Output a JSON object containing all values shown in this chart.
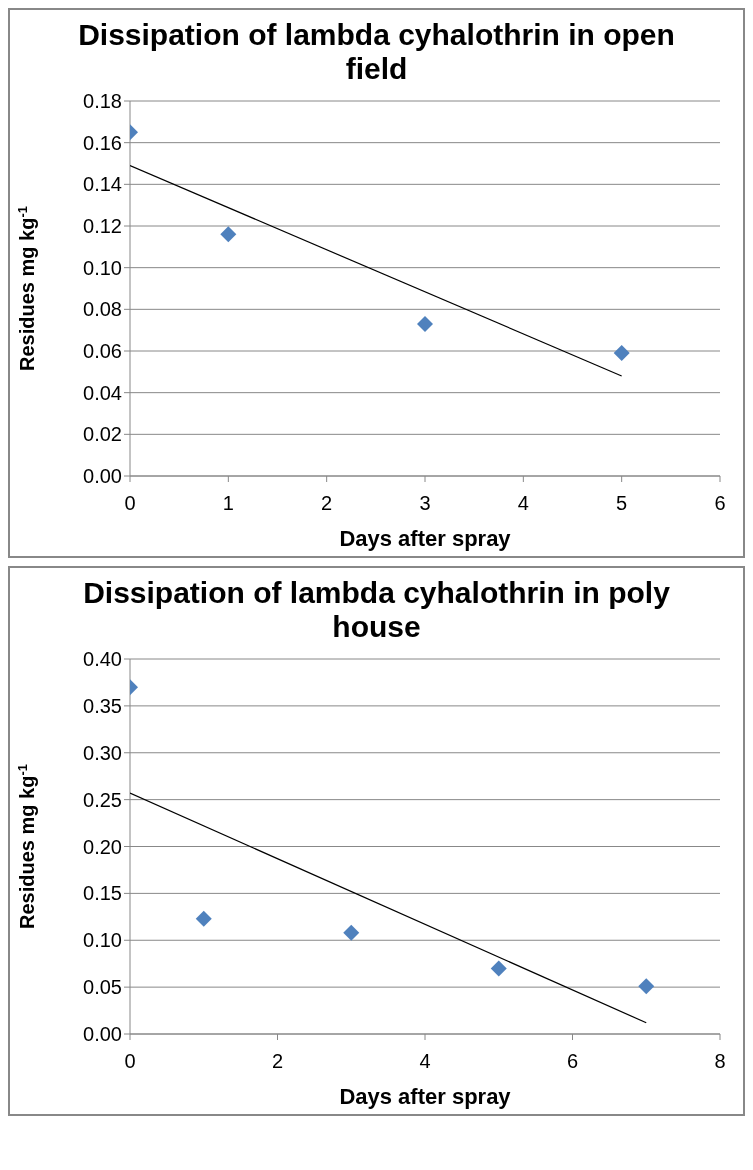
{
  "chart_data": [
    {
      "type": "scatter",
      "title": "Dissipation of lambda cyhalothrin in open field",
      "xlabel": "Days after spray",
      "ylabel": "Residues mg kg$^{-1}$",
      "x": [
        0,
        1,
        3,
        5
      ],
      "series": [
        {
          "values": [
            0.165,
            0.116,
            0.073,
            0.059
          ],
          "color": "#4f81bd",
          "marker": "diamond"
        },
        {
          "type": "line",
          "x": [
            0,
            5
          ],
          "values": [
            0.149,
            0.048
          ],
          "color": "#000000",
          "marker": "none"
        }
      ],
      "xlim": [
        0,
        6
      ],
      "xticks": [
        0,
        1,
        2,
        3,
        4,
        5,
        6
      ],
      "ylim": [
        0,
        0.18
      ],
      "yticks": [
        {
          "value": 0,
          "label": "0.00"
        },
        {
          "value": 0.02,
          "label": "0.02"
        },
        {
          "value": 0.04,
          "label": "0.04"
        },
        {
          "value": 0.06,
          "label": "0.06"
        },
        {
          "value": 0.08,
          "label": "0.08"
        },
        {
          "value": 0.1,
          "label": "0.10"
        },
        {
          "value": 0.12,
          "label": "0.12"
        },
        {
          "value": 0.14,
          "label": "0.14"
        },
        {
          "value": 0.16,
          "label": "0.16"
        },
        {
          "value": 0.18,
          "label": "0.18"
        }
      ],
      "grid": "y"
    },
    {
      "type": "scatter",
      "title": "Dissipation of lambda cyhalothrin in poly house",
      "xlabel": "Days after spray",
      "ylabel": "Residues mg kg$^{-1}$",
      "x": [
        0,
        1,
        3,
        5,
        7
      ],
      "series": [
        {
          "values": [
            0.37,
            0.123,
            0.108,
            0.07,
            0.051
          ],
          "color": "#4f81bd",
          "marker": "diamond"
        },
        {
          "type": "line",
          "x": [
            0,
            7
          ],
          "values": [
            0.257,
            0.012
          ],
          "color": "#000000",
          "marker": "none"
        }
      ],
      "xlim": [
        0,
        8
      ],
      "xticks": [
        0,
        2,
        4,
        6,
        8
      ],
      "ylim": [
        0,
        0.4
      ],
      "yticks": [
        {
          "value": 0,
          "label": "0.00"
        },
        {
          "value": 0.05,
          "label": "0.05"
        },
        {
          "value": 0.1,
          "label": "0.10"
        },
        {
          "value": 0.15,
          "label": "0.15"
        },
        {
          "value": 0.2,
          "label": "0.20"
        },
        {
          "value": 0.25,
          "label": "0.25"
        },
        {
          "value": 0.3,
          "label": "0.30"
        },
        {
          "value": 0.35,
          "label": "0.35"
        },
        {
          "value": 0.4,
          "label": "0.40"
        }
      ],
      "grid": "y"
    }
  ]
}
